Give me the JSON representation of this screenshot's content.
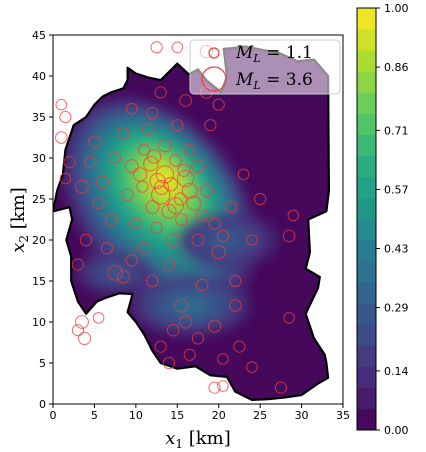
{
  "chart_data": {
    "type": "heatmap",
    "title": "",
    "xlabel": "$x_1$ [km]",
    "ylabel": "$x_2$ [km]",
    "xlim": [
      0,
      35
    ],
    "ylim": [
      0,
      45
    ],
    "xticks": [
      "0",
      "5",
      "10",
      "15",
      "20",
      "25",
      "30",
      "35"
    ],
    "yticks": [
      "0",
      "5",
      "10",
      "15",
      "20",
      "25",
      "30",
      "35",
      "40",
      "45"
    ],
    "colorbar": {
      "colormap": "viridis",
      "range": [
        0,
        1
      ],
      "ticks": [
        "0.00",
        "0.14",
        "0.29",
        "0.43",
        "0.57",
        "0.71",
        "0.86",
        "1.00"
      ],
      "levels": 20
    },
    "density_peak": [
      13.5,
      27.5
    ],
    "region_outline": [
      [
        0,
        23.5
      ],
      [
        2,
        24
      ],
      [
        2.3,
        22.5
      ],
      [
        1.6,
        20
      ],
      [
        2.2,
        18
      ],
      [
        2.2,
        15
      ],
      [
        3,
        12.5
      ],
      [
        4,
        11
      ],
      [
        5.3,
        12.5
      ],
      [
        6.5,
        13
      ],
      [
        8,
        13.5
      ],
      [
        9.6,
        13.4
      ],
      [
        9,
        11.2
      ],
      [
        10,
        10
      ],
      [
        11,
        8.5
      ],
      [
        12,
        6.5
      ],
      [
        13,
        5
      ],
      [
        15,
        4.3
      ],
      [
        17.2,
        4.6
      ],
      [
        19,
        3.5
      ],
      [
        21,
        3.3
      ],
      [
        22,
        1.5
      ],
      [
        24,
        0.5
      ],
      [
        26,
        0.6
      ],
      [
        28,
        0.8
      ],
      [
        30,
        1.1
      ],
      [
        32,
        2.5
      ],
      [
        33.2,
        3.2
      ],
      [
        33,
        5
      ],
      [
        32.8,
        6
      ],
      [
        31.5,
        8
      ],
      [
        30.5,
        11
      ],
      [
        32,
        14.2
      ],
      [
        32.2,
        15.5
      ],
      [
        30.5,
        16.5
      ],
      [
        31,
        18.5
      ],
      [
        30.8,
        22.5
      ],
      [
        33,
        23.5
      ],
      [
        33.3,
        26
      ],
      [
        33.2,
        40
      ],
      [
        31.5,
        42
      ],
      [
        29.5,
        41.8
      ],
      [
        27.3,
        42.8
      ],
      [
        25.2,
        43.2
      ],
      [
        23.2,
        43.6
      ],
      [
        21.7,
        43.4
      ],
      [
        20.6,
        43.3
      ],
      [
        21,
        40
      ],
      [
        20.3,
        38
      ],
      [
        18.5,
        39.5
      ],
      [
        17.5,
        40.8
      ],
      [
        16.4,
        40.2
      ],
      [
        15,
        41.5
      ],
      [
        13,
        39.5
      ],
      [
        11.5,
        39.8
      ],
      [
        10,
        40.3
      ],
      [
        9,
        41
      ],
      [
        9,
        39.5
      ],
      [
        8.5,
        38.5
      ],
      [
        7,
        38
      ],
      [
        6,
        37.5
      ],
      [
        5,
        36.5
      ],
      [
        4,
        35
      ],
      [
        2.5,
        34
      ],
      [
        1.5,
        31
      ],
      [
        1.2,
        28
      ],
      [
        0.5,
        26
      ],
      [
        0,
        23.5
      ]
    ],
    "legend": {
      "position": "top-right",
      "entries": [
        {
          "label": "$M_L = 1.1$",
          "magnitude": 1.1
        },
        {
          "label": "$M_L = 3.6$",
          "magnitude": 3.6
        }
      ]
    },
    "marker_color": "#f03c3c",
    "events": [
      {
        "x": 13.5,
        "y": 28.0,
        "m": 2.4
      },
      {
        "x": 12.6,
        "y": 27.2,
        "m": 2.0
      },
      {
        "x": 14.2,
        "y": 26.8,
        "m": 1.7
      },
      {
        "x": 13.0,
        "y": 25.5,
        "m": 2.6
      },
      {
        "x": 15.4,
        "y": 25.0,
        "m": 1.5
      },
      {
        "x": 11.8,
        "y": 29.3,
        "m": 1.9
      },
      {
        "x": 14.8,
        "y": 29.7,
        "m": 1.4
      },
      {
        "x": 16.0,
        "y": 27.5,
        "m": 2.2
      },
      {
        "x": 12.0,
        "y": 24.0,
        "m": 1.6
      },
      {
        "x": 10.8,
        "y": 26.5,
        "m": 1.3
      },
      {
        "x": 17.0,
        "y": 24.5,
        "m": 1.8
      },
      {
        "x": 15.5,
        "y": 22.5,
        "m": 1.4
      },
      {
        "x": 13.5,
        "y": 31.5,
        "m": 1.5
      },
      {
        "x": 11.0,
        "y": 31.0,
        "m": 1.3
      },
      {
        "x": 9.5,
        "y": 29.0,
        "m": 1.6
      },
      {
        "x": 16.5,
        "y": 31.0,
        "m": 1.3
      },
      {
        "x": 18.5,
        "y": 26.0,
        "m": 1.5
      },
      {
        "x": 19.5,
        "y": 22.0,
        "m": 1.3
      },
      {
        "x": 8.5,
        "y": 33.0,
        "m": 1.4
      },
      {
        "x": 7.5,
        "y": 30.0,
        "m": 1.3
      },
      {
        "x": 6.0,
        "y": 27.0,
        "m": 1.5
      },
      {
        "x": 5.0,
        "y": 32.0,
        "m": 1.3
      },
      {
        "x": 3.5,
        "y": 26.5,
        "m": 1.6
      },
      {
        "x": 2.0,
        "y": 29.5,
        "m": 1.3
      },
      {
        "x": 1.0,
        "y": 32.5,
        "m": 1.4
      },
      {
        "x": 1.5,
        "y": 35.0,
        "m": 1.3
      },
      {
        "x": 1.0,
        "y": 36.5,
        "m": 1.2
      },
      {
        "x": 4.0,
        "y": 20.0,
        "m": 1.4
      },
      {
        "x": 3.0,
        "y": 17.0,
        "m": 1.3
      },
      {
        "x": 7.5,
        "y": 16.0,
        "m": 1.9
      },
      {
        "x": 8.5,
        "y": 15.5,
        "m": 1.5
      },
      {
        "x": 11.0,
        "y": 19.0,
        "m": 1.4
      },
      {
        "x": 14.0,
        "y": 17.0,
        "m": 1.3
      },
      {
        "x": 15.5,
        "y": 12.0,
        "m": 1.6
      },
      {
        "x": 14.5,
        "y": 9.0,
        "m": 1.4
      },
      {
        "x": 13.0,
        "y": 7.0,
        "m": 1.3
      },
      {
        "x": 16.5,
        "y": 6.0,
        "m": 1.3
      },
      {
        "x": 19.5,
        "y": 9.5,
        "m": 1.5
      },
      {
        "x": 22.5,
        "y": 7.0,
        "m": 1.3
      },
      {
        "x": 22.0,
        "y": 12.0,
        "m": 1.4
      },
      {
        "x": 20.0,
        "y": 18.5,
        "m": 1.7
      },
      {
        "x": 20.5,
        "y": 20.5,
        "m": 1.3
      },
      {
        "x": 24.0,
        "y": 20.0,
        "m": 1.2
      },
      {
        "x": 28.5,
        "y": 20.5,
        "m": 1.4
      },
      {
        "x": 29.0,
        "y": 23.0,
        "m": 1.2
      },
      {
        "x": 25.0,
        "y": 25.0,
        "m": 1.3
      },
      {
        "x": 23.0,
        "y": 28.0,
        "m": 1.2
      },
      {
        "x": 19.0,
        "y": 34.0,
        "m": 1.3
      },
      {
        "x": 16.0,
        "y": 37.0,
        "m": 1.4
      },
      {
        "x": 13.0,
        "y": 38.0,
        "m": 1.3
      },
      {
        "x": 12.0,
        "y": 35.5,
        "m": 1.3
      },
      {
        "x": 9.5,
        "y": 36.0,
        "m": 1.2
      },
      {
        "x": 18.5,
        "y": 43.0,
        "m": 1.5
      },
      {
        "x": 12.5,
        "y": 43.5,
        "m": 1.3
      },
      {
        "x": 15.0,
        "y": 43.5,
        "m": 1.2
      },
      {
        "x": 3.5,
        "y": 10.0,
        "m": 1.6
      },
      {
        "x": 3.8,
        "y": 8.0,
        "m": 1.5
      },
      {
        "x": 3.0,
        "y": 9.0,
        "m": 1.3
      },
      {
        "x": 5.5,
        "y": 10.5,
        "m": 1.2
      },
      {
        "x": 19.5,
        "y": 2.0,
        "m": 1.3
      },
      {
        "x": 20.5,
        "y": 2.2,
        "m": 1.2
      },
      {
        "x": 24.0,
        "y": 4.5,
        "m": 1.2
      },
      {
        "x": 27.5,
        "y": 2.0,
        "m": 1.3
      },
      {
        "x": 28.5,
        "y": 10.5,
        "m": 1.2
      },
      {
        "x": 22.0,
        "y": 15.0,
        "m": 1.3
      },
      {
        "x": 18.0,
        "y": 14.5,
        "m": 1.4
      },
      {
        "x": 10.0,
        "y": 22.0,
        "m": 1.3
      },
      {
        "x": 7.0,
        "y": 22.5,
        "m": 1.4
      },
      {
        "x": 5.5,
        "y": 24.5,
        "m": 1.3
      },
      {
        "x": 17.5,
        "y": 20.0,
        "m": 1.5
      },
      {
        "x": 14.5,
        "y": 20.0,
        "m": 1.6
      },
      {
        "x": 12.5,
        "y": 21.5,
        "m": 1.3
      },
      {
        "x": 11.5,
        "y": 33.5,
        "m": 1.4
      },
      {
        "x": 15.0,
        "y": 34.0,
        "m": 1.3
      },
      {
        "x": 17.5,
        "y": 29.0,
        "m": 1.6
      },
      {
        "x": 10.5,
        "y": 28.0,
        "m": 1.7
      },
      {
        "x": 9.0,
        "y": 25.5,
        "m": 1.4
      },
      {
        "x": 16.5,
        "y": 26.0,
        "m": 2.0
      },
      {
        "x": 14.0,
        "y": 23.5,
        "m": 1.8
      },
      {
        "x": 12.2,
        "y": 30.2,
        "m": 1.7
      },
      {
        "x": 15.8,
        "y": 28.5,
        "m": 1.5
      },
      {
        "x": 14.8,
        "y": 24.2,
        "m": 2.1
      },
      {
        "x": 13.1,
        "y": 26.4,
        "m": 1.8
      },
      {
        "x": 18.0,
        "y": 23.0,
        "m": 1.4
      },
      {
        "x": 21.5,
        "y": 24.0,
        "m": 1.3
      },
      {
        "x": 1.5,
        "y": 27.5,
        "m": 1.2
      },
      {
        "x": 4.5,
        "y": 29.5,
        "m": 1.3
      },
      {
        "x": 6.5,
        "y": 19.0,
        "m": 1.3
      },
      {
        "x": 9.5,
        "y": 17.5,
        "m": 1.3
      },
      {
        "x": 12.0,
        "y": 15.0,
        "m": 1.4
      },
      {
        "x": 16.0,
        "y": 10.0,
        "m": 1.5
      },
      {
        "x": 17.5,
        "y": 8.0,
        "m": 1.3
      },
      {
        "x": 20.5,
        "y": 5.5,
        "m": 1.2
      },
      {
        "x": 14.0,
        "y": 5.0,
        "m": 1.3
      },
      {
        "x": 18.5,
        "y": 38.0,
        "m": 1.4
      },
      {
        "x": 20.0,
        "y": 36.5,
        "m": 1.3
      }
    ]
  }
}
